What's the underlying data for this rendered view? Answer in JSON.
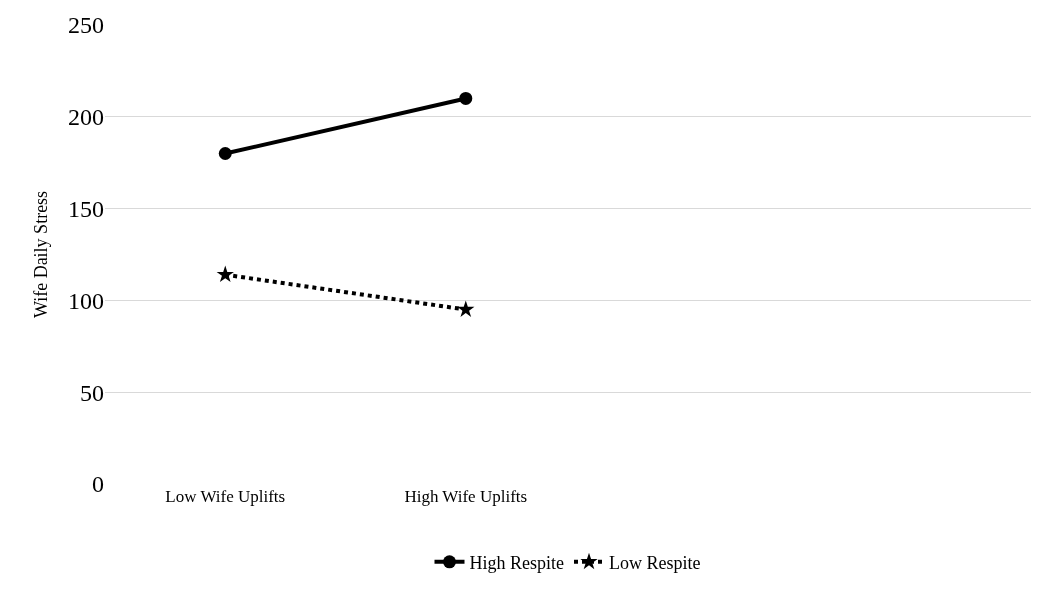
{
  "chart_data": {
    "type": "line",
    "ylabel": "Wife Daily Stress",
    "categories": [
      "Low Wife Uplifts",
      "High Wife Uplifts",
      null,
      null
    ],
    "series": [
      {
        "name": "High Respite",
        "color": "#000000",
        "values": [
          180,
          210,
          null,
          null
        ],
        "marker": "circle",
        "line_style": "solid"
      },
      {
        "name": "Low Respite",
        "color": "#000000",
        "values": [
          114,
          95,
          null,
          null
        ],
        "marker": "star",
        "line_style": "dotted"
      }
    ],
    "ylim": [
      0,
      250
    ],
    "yticks": [
      0,
      50,
      100,
      150,
      200,
      250
    ],
    "grid": "y",
    "legend": "bottom"
  }
}
